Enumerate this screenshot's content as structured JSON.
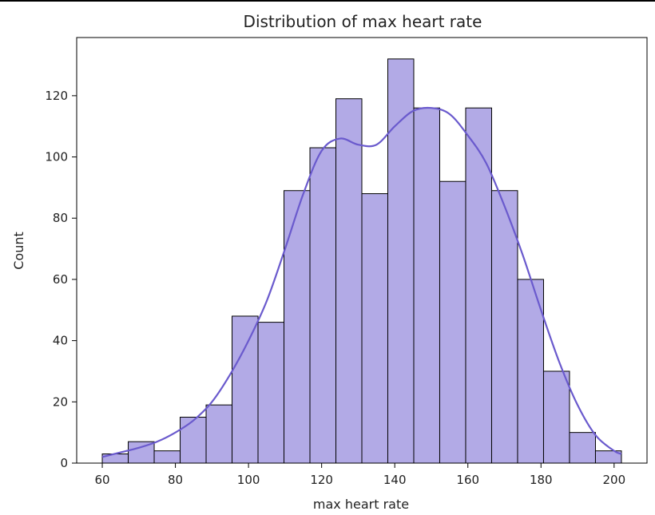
{
  "chart_data": {
    "type": "bar",
    "title": "Distribution of max heart rate",
    "xlabel": "max heart rate",
    "ylabel": "Count",
    "bin_edges": [
      60.0,
      67.1,
      74.2,
      81.3,
      88.4,
      95.5,
      102.6,
      109.7,
      116.8,
      123.9,
      131.0,
      138.1,
      145.2,
      152.3,
      159.4,
      166.5,
      173.6,
      180.7,
      187.8,
      194.9,
      202.0
    ],
    "values": [
      3,
      7,
      4,
      15,
      19,
      48,
      46,
      89,
      103,
      119,
      88,
      132,
      116,
      92,
      116,
      89,
      60,
      30,
      10,
      4
    ],
    "kde": {
      "x": [
        60,
        65,
        70,
        75,
        80,
        85,
        90,
        95,
        100,
        105,
        110,
        115,
        120,
        125,
        130,
        135,
        140,
        145,
        150,
        155,
        160,
        165,
        170,
        175,
        180,
        185,
        190,
        195,
        200,
        202
      ],
      "y": [
        2,
        3.5,
        5,
        7,
        10,
        14,
        20,
        29,
        40,
        53,
        70,
        88,
        102,
        106,
        104,
        104,
        110,
        115,
        116,
        114,
        107,
        98,
        84,
        68,
        50,
        33,
        19,
        9,
        4,
        3
      ]
    },
    "xlim": [
      53,
      209
    ],
    "ylim": [
      0,
      139
    ],
    "xticks": [
      60,
      80,
      100,
      120,
      140,
      160,
      180,
      200
    ],
    "yticks": [
      0,
      20,
      40,
      60,
      80,
      100,
      120
    ],
    "grid": false,
    "colors": {
      "bar_fill": "#b2aae6",
      "bar_edge": "#000000",
      "kde_line": "#6a5acd"
    }
  }
}
